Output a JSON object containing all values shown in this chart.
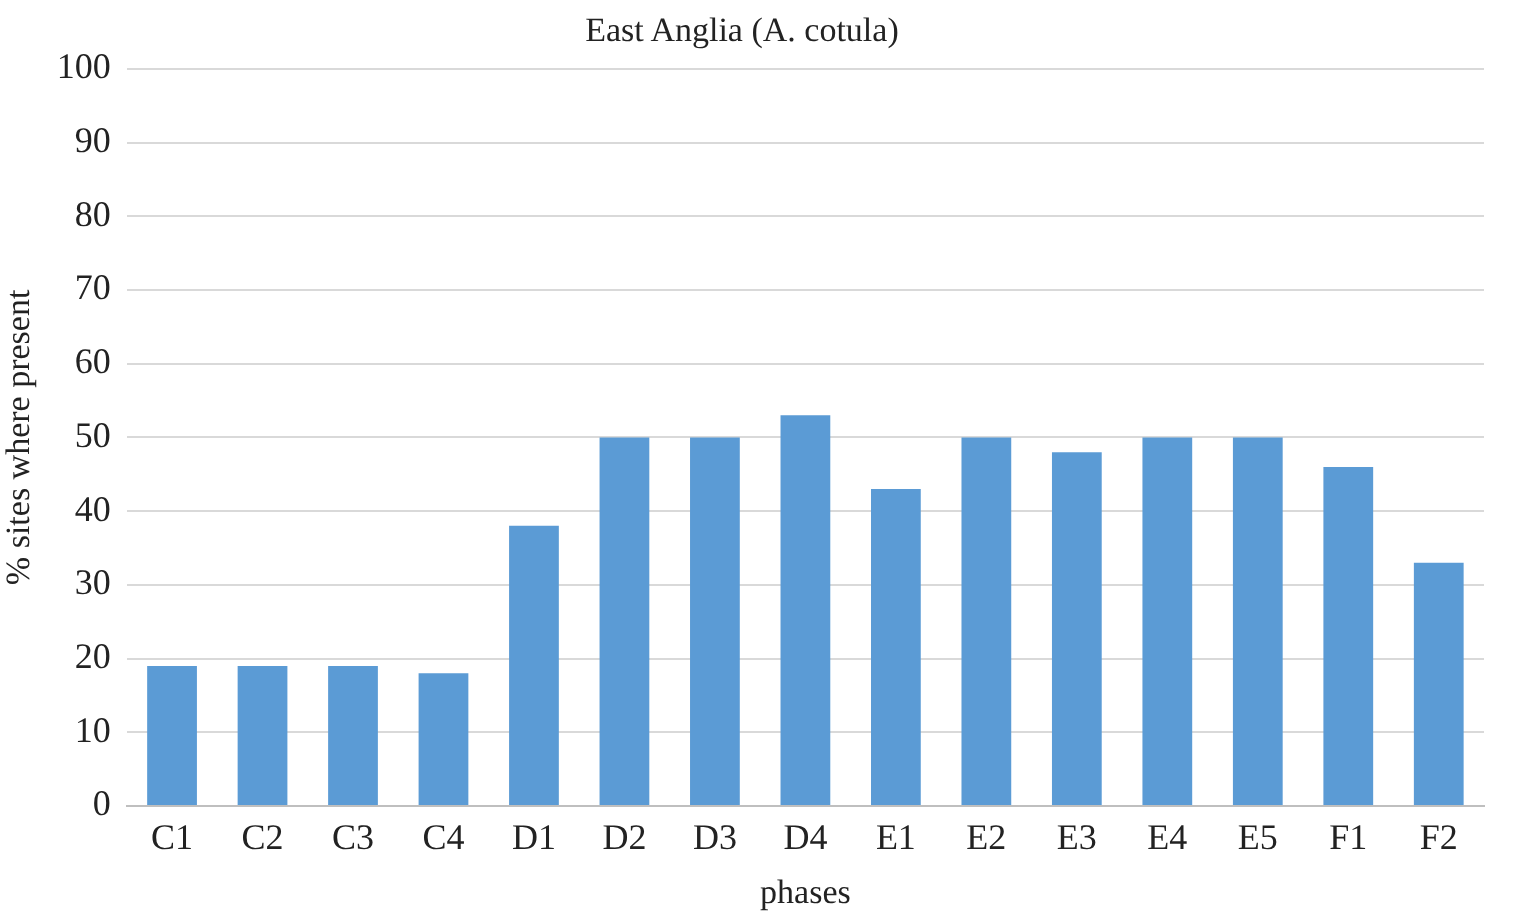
{
  "chart_data": {
    "type": "bar",
    "title": "East Anglia (A. cotula)",
    "xlabel": "phases",
    "ylabel": "% sites where present",
    "categories": [
      "C1",
      "C2",
      "C3",
      "C4",
      "D1",
      "D2",
      "D3",
      "D4",
      "E1",
      "E2",
      "E3",
      "E4",
      "E5",
      "F1",
      "F2"
    ],
    "values": [
      19,
      19,
      19,
      18,
      38,
      50,
      50,
      53,
      43,
      50,
      48,
      50,
      50,
      46,
      33
    ],
    "color": "#5b9bd5",
    "ylim": [
      0,
      100
    ],
    "yticks": [
      0,
      10,
      20,
      30,
      40,
      50,
      60,
      70,
      80,
      90,
      100
    ],
    "grid": "y",
    "legend": false
  }
}
